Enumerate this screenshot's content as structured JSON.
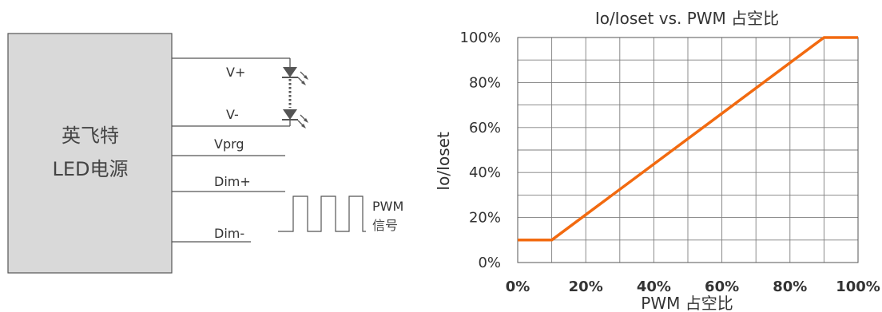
{
  "diagram": {
    "driver_name_line1": "英飞特",
    "driver_name_line2": "LED电源",
    "terminal_vplus": "V+",
    "terminal_vminus": "V-",
    "terminal_vprg": "Vprg",
    "terminal_dimplus": "Dim+",
    "terminal_dimminus": "Dim-",
    "pwm_label_line1": "PWM",
    "pwm_label_line2": "信号"
  },
  "chart_data": {
    "type": "line",
    "title": "Io/Ioset vs. PWM 占空比",
    "xlabel": "PWM 占空比",
    "ylabel": "Io/Ioset",
    "xlim": [
      0,
      100
    ],
    "ylim": [
      0,
      100
    ],
    "x_ticks": [
      "0%",
      "20%",
      "40%",
      "60%",
      "80%",
      "100%"
    ],
    "y_ticks": [
      "0%",
      "20%",
      "40%",
      "60%",
      "80%",
      "100%"
    ],
    "grid": true,
    "colors": {
      "line": "#F26A10",
      "grid": "#7F7F7F"
    },
    "series": [
      {
        "x": [
          0,
          10,
          90,
          100
        ],
        "y": [
          10,
          10,
          100,
          100
        ]
      }
    ]
  }
}
